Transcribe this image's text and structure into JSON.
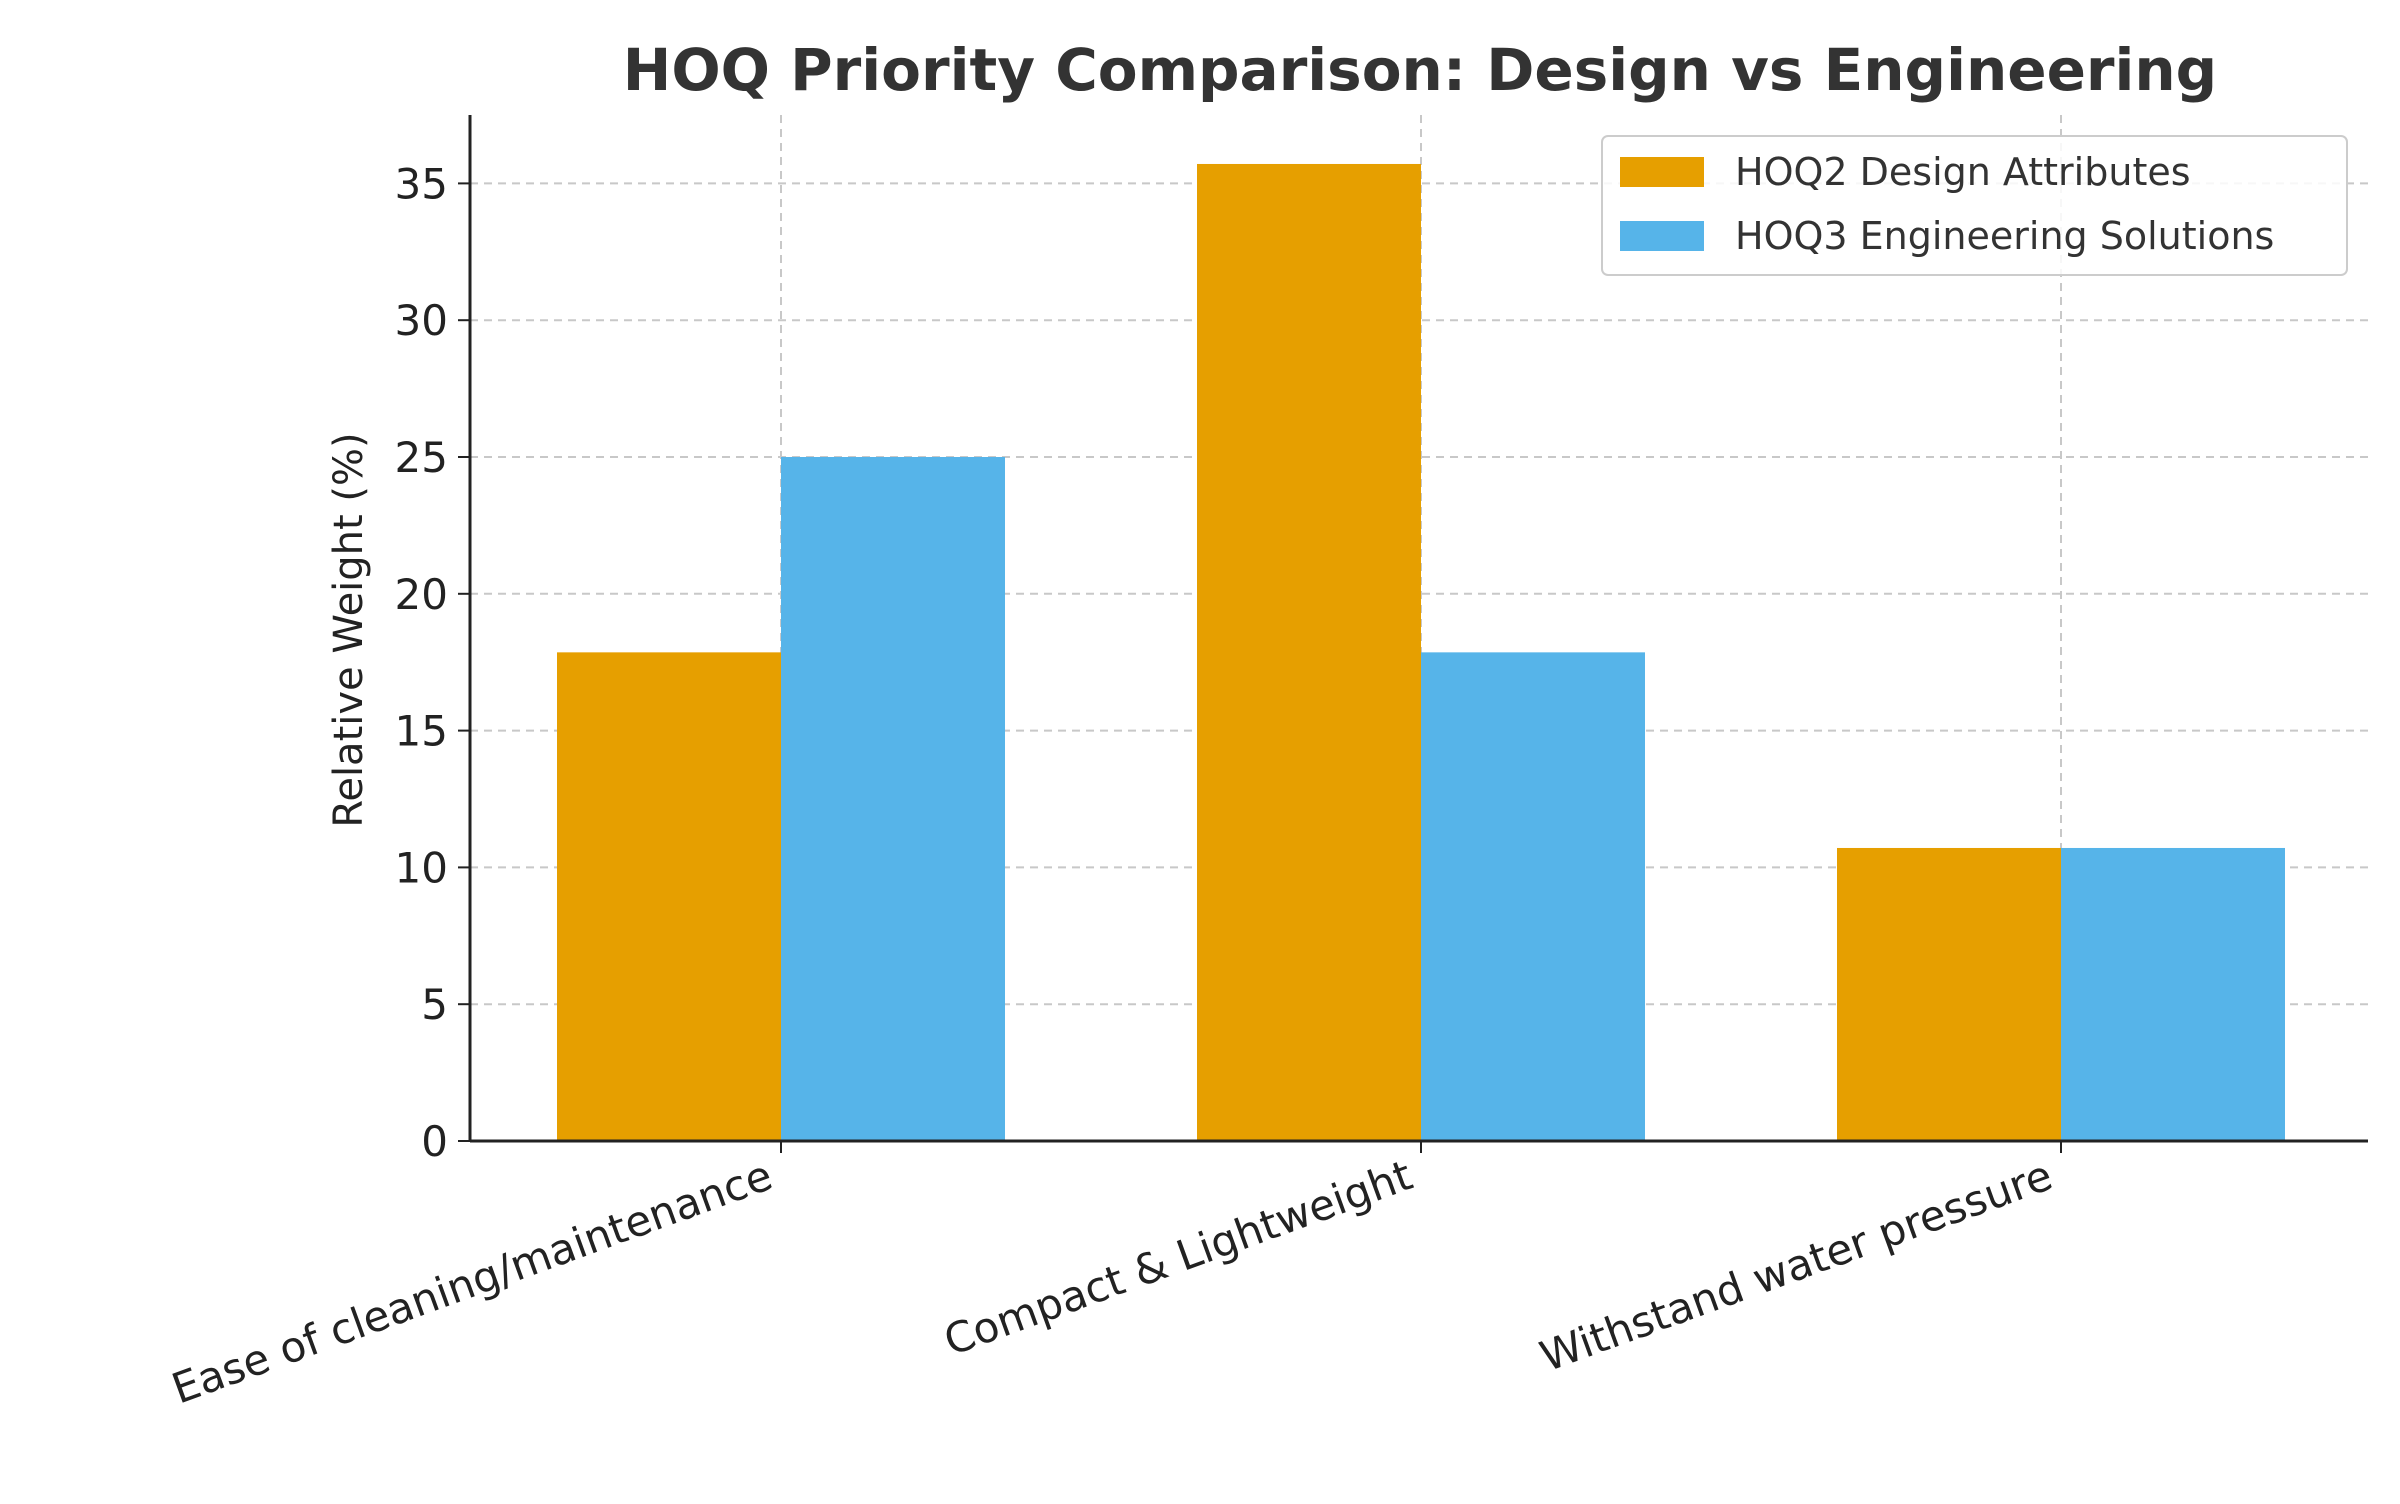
{
  "chart_data": {
    "type": "bar",
    "title": "HOQ Priority Comparison: Design vs Engineering",
    "xlabel": "",
    "ylabel": "Relative Weight (%)",
    "categories": [
      "Ease of cleaning/maintenance",
      "Compact & Lightweight",
      "Withstand water pressure"
    ],
    "series": [
      {
        "name": "HOQ2 Design Attributes",
        "values": [
          17.86,
          35.71,
          10.71
        ],
        "color": "#E69F00"
      },
      {
        "name": "HOQ3 Engineering Solutions",
        "values": [
          25.0,
          17.86,
          10.71
        ],
        "color": "#56B4E9"
      }
    ],
    "ylim": [
      0,
      37.5
    ],
    "yticks": [
      0,
      5,
      10,
      15,
      20,
      25,
      30,
      35
    ],
    "grid": true,
    "legend_position": "top-right"
  }
}
